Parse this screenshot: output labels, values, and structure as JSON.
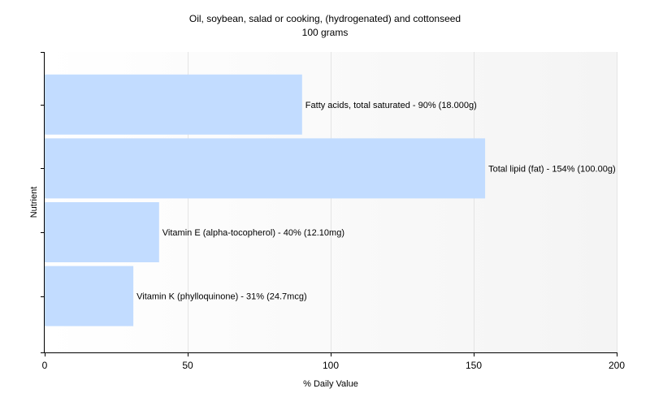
{
  "chart_data": {
    "type": "bar",
    "orientation": "horizontal",
    "title": "Oil, soybean, salad or cooking, (hydrogenated) and cottonseed",
    "subtitle": "100 grams",
    "xlabel": "% Daily Value",
    "ylabel": "Nutrient",
    "xlim": [
      0,
      200
    ],
    "xticks": [
      0,
      50,
      100,
      150,
      200
    ],
    "grid": true,
    "bar_color": "#c2dcff",
    "categories": [
      "Fatty acids, total saturated",
      "Total lipid (fat)",
      "Vitamin E (alpha-tocopherol)",
      "Vitamin K (phylloquinone)"
    ],
    "values": [
      90,
      154,
      40,
      31
    ],
    "labels": [
      "Fatty acids, total saturated - 90% (18.000g)",
      "Total lipid (fat) - 154% (100.00g)",
      "Vitamin E (alpha-tocopherol) - 40% (12.10mg)",
      "Vitamin K (phylloquinone) - 31% (24.7mcg)"
    ]
  }
}
